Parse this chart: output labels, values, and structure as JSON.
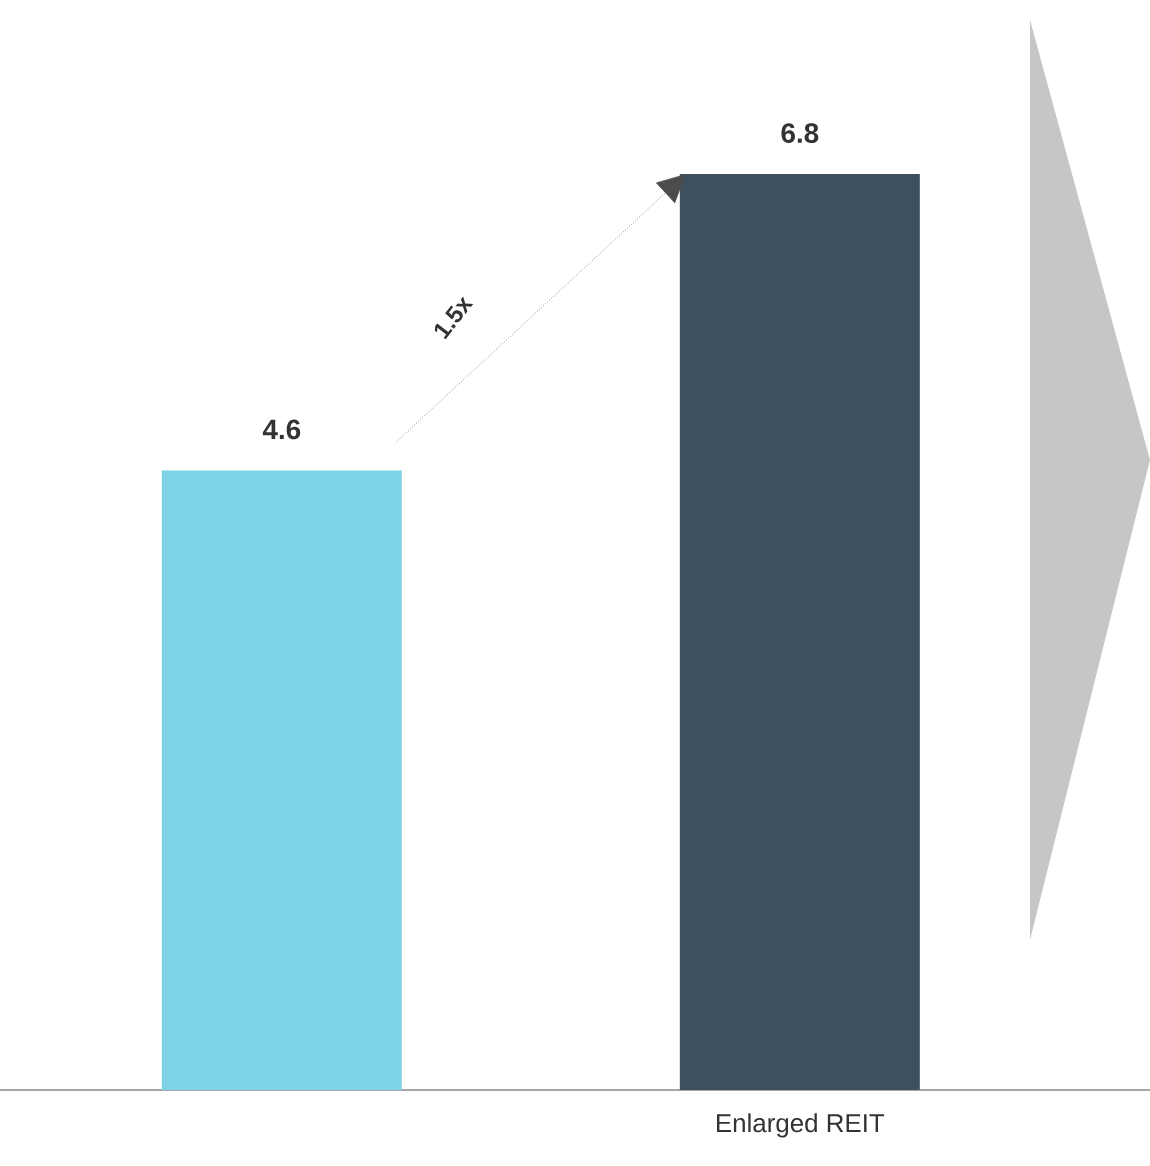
{
  "chart_data": {
    "type": "bar",
    "categories": [
      null,
      "Enlarged REIT"
    ],
    "values": [
      4.6,
      6.8
    ],
    "colors": [
      "#7dd3e5",
      "#3d5060"
    ],
    "data_labels": true,
    "annotations": [
      "1.5x"
    ]
  }
}
